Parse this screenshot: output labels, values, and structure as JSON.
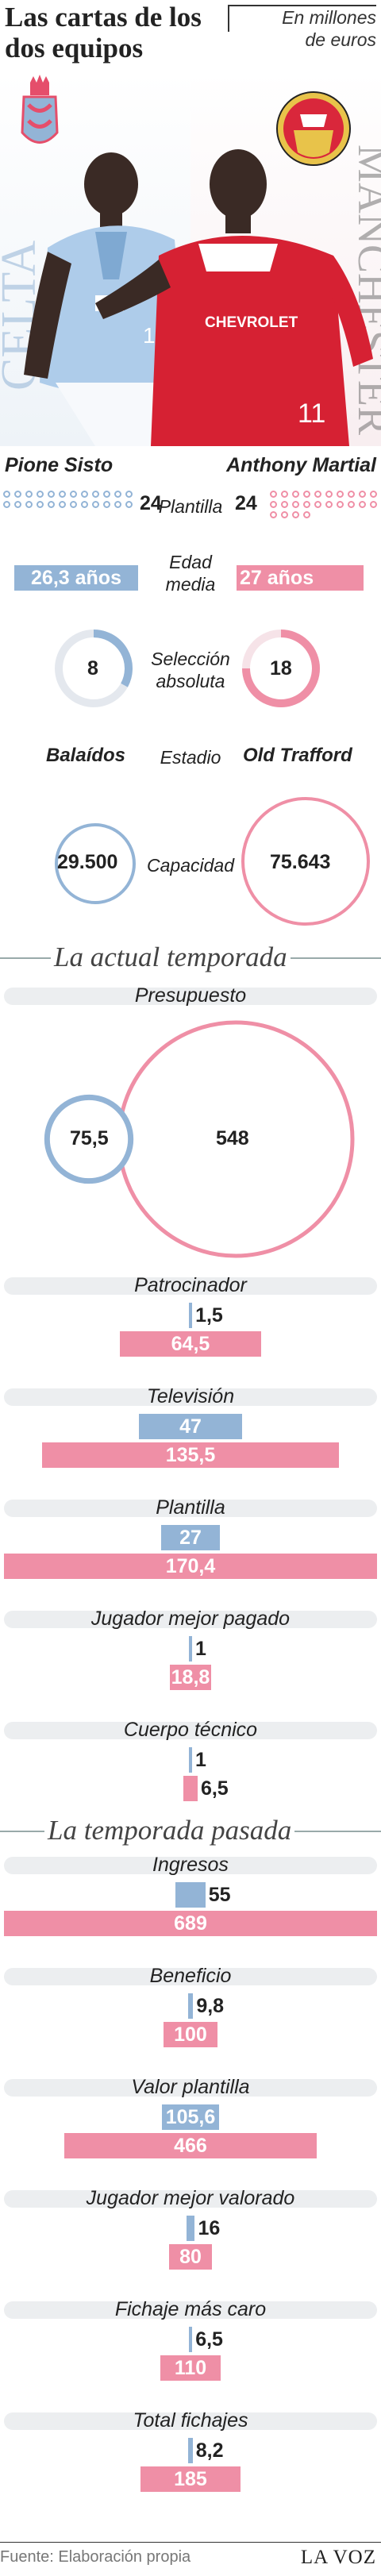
{
  "header": {
    "title_line1": "Las cartas de los",
    "title_line2": "dos equipos",
    "units_line1": "En millones",
    "units_line2": "de euros"
  },
  "hero": {
    "left_team_word": "CELTA",
    "right_team_word": "MANCHESTER",
    "left_crest_icon": "celta-crest-icon",
    "right_crest_icon": "manchester-united-crest-icon",
    "left_player_icon": "celta-player-photo",
    "right_player_icon": "manchester-player-photo",
    "right_shirt_text": "CHEVROLET",
    "right_shirt_number": "11",
    "left_shirt_number": "11"
  },
  "players": {
    "left": "Pione Sisto",
    "right": "Anthony Martial"
  },
  "comparison": {
    "plantilla": {
      "label": "Plantilla",
      "left": "24",
      "right": "24",
      "left_count": 24,
      "right_count": 24
    },
    "edad": {
      "label_line1": "Edad",
      "label_line2": "media",
      "left": "26,3 años",
      "right": "27 años"
    },
    "seleccion": {
      "label_line1": "Selección",
      "label_line2": "absoluta",
      "left": "8",
      "right": "18",
      "left_fraction": 0.33,
      "right_fraction": 0.75
    },
    "estadio": {
      "label": "Estadio",
      "left": "Balaídos",
      "right": "Old Trafford"
    },
    "capacidad": {
      "label": "Capacidad",
      "left": "29.500",
      "right": "75.643"
    }
  },
  "colors": {
    "celta": "#93b4d6",
    "manchester": "#ef8fa6",
    "celta_text": "#6f93bd",
    "manchester_text": "#e46f8d"
  },
  "sections": {
    "actual": "La actual temporada",
    "pasada": "La temporada pasada"
  },
  "chart_data": [
    {
      "type": "bar",
      "title": "La actual temporada",
      "categories": [
        "Presupuesto",
        "Patrocinador",
        "Televisión",
        "Plantilla",
        "Jugador mejor pagado",
        "Cuerpo técnico"
      ],
      "series": [
        {
          "name": "",
          "values": [
            75.5,
            1.5,
            47,
            27,
            1,
            1
          ]
        },
        {
          "name": "",
          "values": [
            548,
            64.5,
            135.5,
            170.4,
            18.8,
            6.5
          ]
        }
      ],
      "value_labels_celta": [
        "75,5",
        "1,5",
        "47",
        "27",
        "1",
        "1"
      ],
      "value_labels_manchester": [
        "548",
        "64,5",
        "135,5",
        "170,4",
        "18,8",
        "6,5"
      ]
    },
    {
      "type": "bar",
      "title": "La temporada pasada",
      "categories": [
        "Ingresos",
        "Beneficio",
        "Valor plantilla",
        "Jugador mejor valorado",
        "Fichaje más caro",
        "Total fichajes"
      ],
      "series": [
        {
          "name": "",
          "values": [
            55,
            9.8,
            105.6,
            16,
            6.5,
            8.2
          ]
        },
        {
          "name": "",
          "values": [
            689,
            100,
            466,
            80,
            110,
            185
          ]
        }
      ],
      "value_labels_celta": [
        "55",
        "9,8",
        "105,6",
        "16",
        "6,5",
        "8,2"
      ],
      "value_labels_manchester": [
        "689",
        "100",
        "466",
        "80",
        "110",
        "185"
      ]
    }
  ],
  "footer": {
    "source": "Fuente: Elaboración propia",
    "brand": "LA VOZ"
  }
}
